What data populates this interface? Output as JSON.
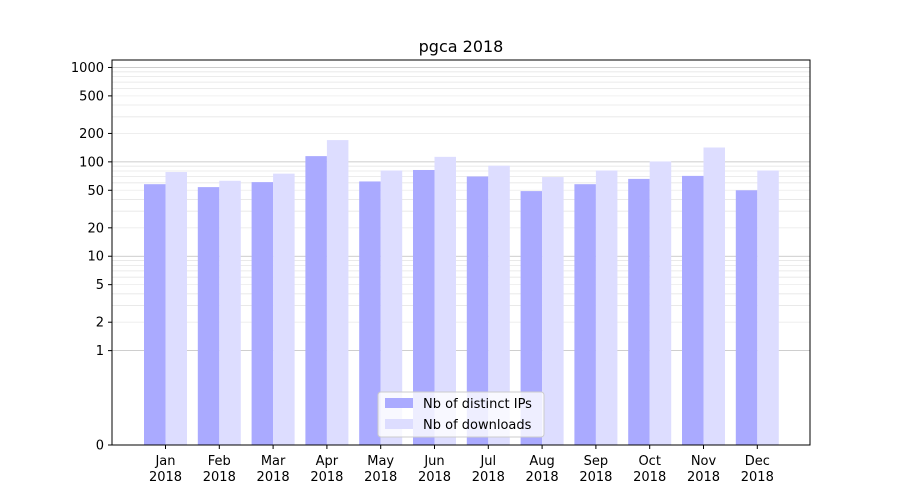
{
  "chart_data": {
    "type": "bar",
    "title": "pgca 2018",
    "xlabel": "",
    "ylabel": "",
    "y_scale": "symlog",
    "ylim": [
      0,
      1200
    ],
    "categories": [
      "Jan\n2018",
      "Feb\n2018",
      "Mar\n2018",
      "Apr\n2018",
      "May\n2018",
      "Jun\n2018",
      "Jul\n2018",
      "Aug\n2018",
      "Sep\n2018",
      "Oct\n2018",
      "Nov\n2018",
      "Dec\n2018"
    ],
    "y_ticks": [
      0,
      1,
      2,
      5,
      10,
      20,
      50,
      100,
      200,
      500,
      1000
    ],
    "grid": true,
    "legend_position": "bottom-center",
    "series": [
      {
        "name": "Nb of distinct IPs",
        "color": "#aaaaff",
        "values": [
          58,
          54,
          61,
          115,
          62,
          82,
          70,
          49,
          58,
          66,
          71,
          50
        ]
      },
      {
        "name": "Nb of downloads",
        "color": "#ddddff",
        "values": [
          78,
          63,
          75,
          170,
          81,
          113,
          91,
          69,
          81,
          101,
          142,
          81
        ]
      }
    ]
  }
}
